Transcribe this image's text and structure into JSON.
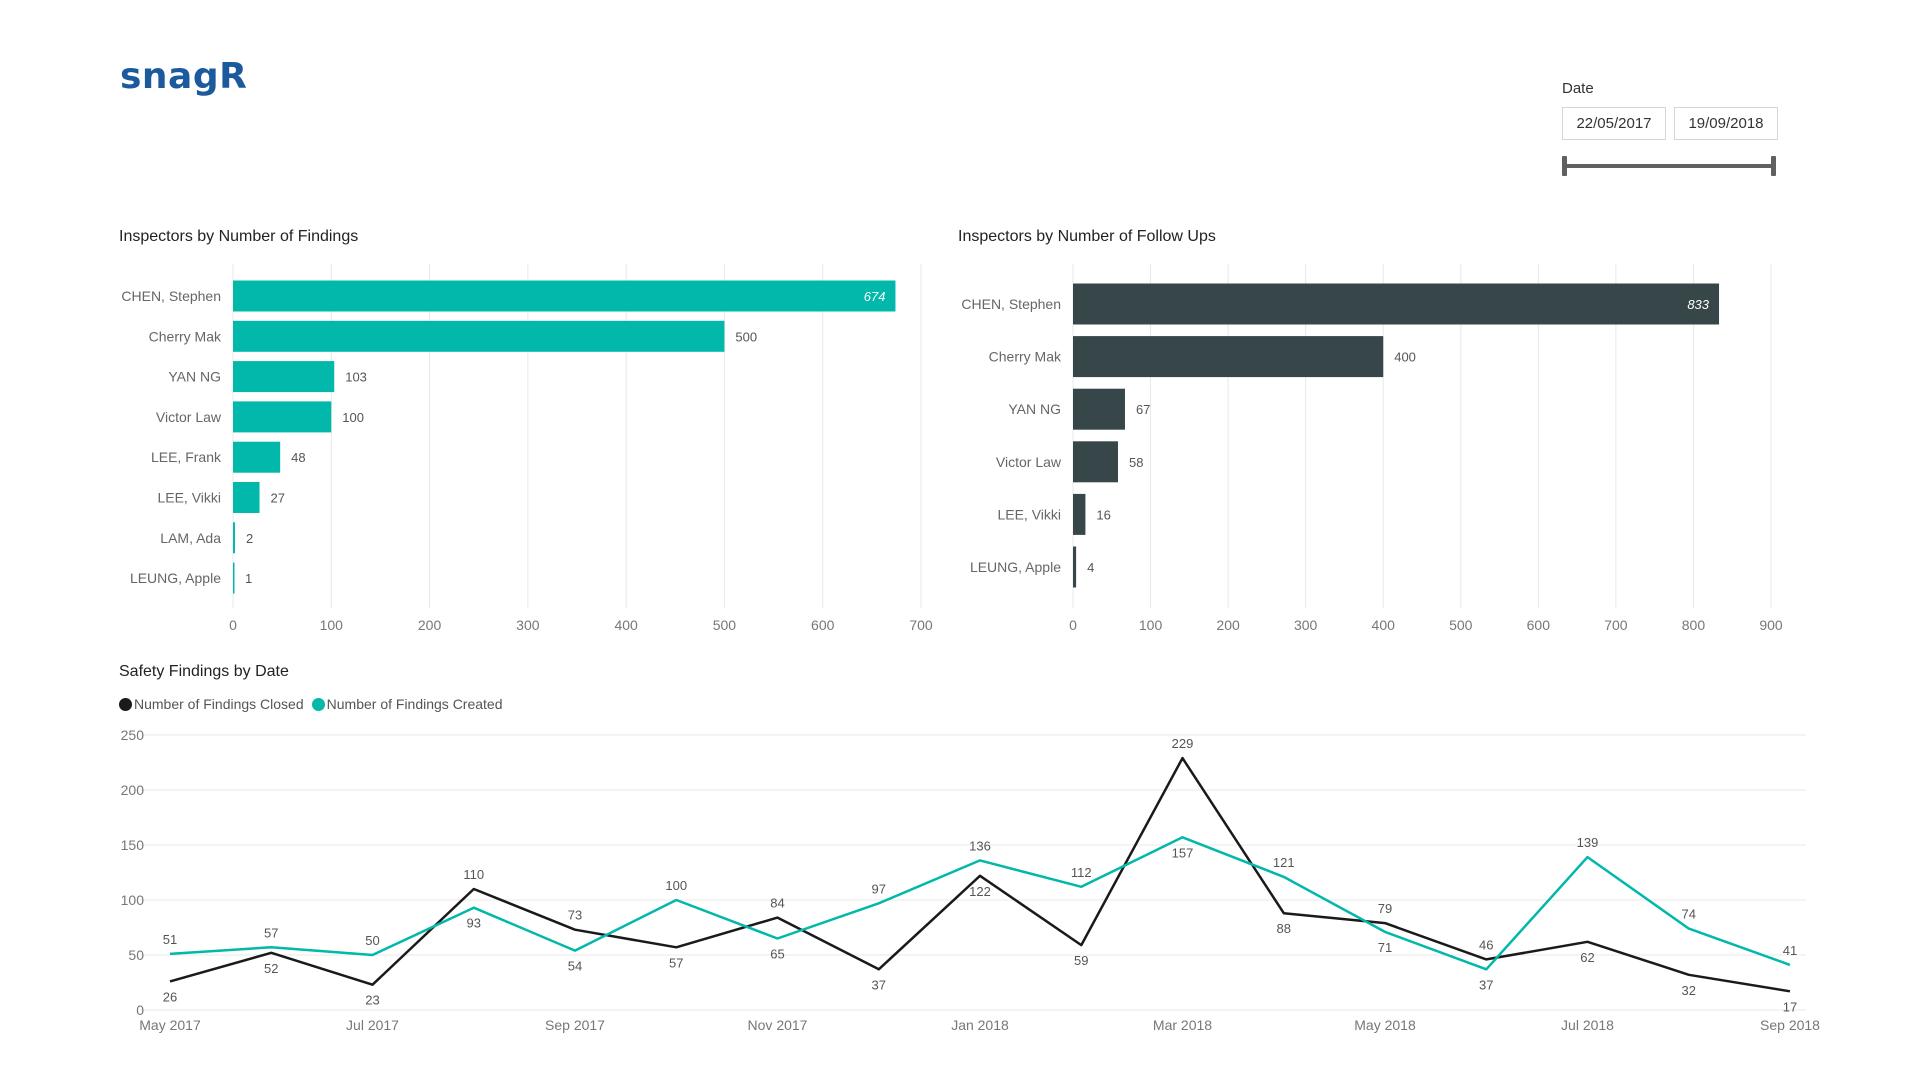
{
  "app": {
    "logo": "snagR"
  },
  "filter": {
    "label": "Date",
    "start": "22/05/2017",
    "end": "19/09/2018"
  },
  "colors": {
    "teal": "#01b8aa",
    "dark": "#374649",
    "black": "#1a1a1a",
    "grid": "#e8e8e8"
  },
  "chart_data": [
    {
      "id": "findings",
      "type": "bar",
      "orientation": "horizontal",
      "title": "Inspectors by Number of Findings",
      "categories": [
        "CHEN, Stephen",
        "Cherry Mak",
        "YAN NG",
        "Victor Law",
        "LEE, Frank",
        "LEE, Vikki",
        "LAM, Ada",
        "LEUNG, Apple"
      ],
      "values": [
        674,
        500,
        103,
        100,
        48,
        27,
        2,
        1
      ],
      "xlim": [
        0,
        700
      ],
      "ticks": [
        0,
        100,
        200,
        300,
        400,
        500,
        600,
        700
      ],
      "color": "#01b8aa",
      "grid": true
    },
    {
      "id": "followups",
      "type": "bar",
      "orientation": "horizontal",
      "title": "Inspectors by Number of Follow Ups",
      "categories": [
        "CHEN, Stephen",
        "Cherry Mak",
        "YAN NG",
        "Victor Law",
        "LEE, Vikki",
        "LEUNG, Apple"
      ],
      "values": [
        833,
        400,
        67,
        58,
        16,
        4
      ],
      "xlim": [
        0,
        900
      ],
      "ticks": [
        0,
        100,
        200,
        300,
        400,
        500,
        600,
        700,
        800,
        900
      ],
      "color": "#374649",
      "grid": true
    },
    {
      "id": "timeline",
      "type": "line",
      "title": "Safety Findings by Date",
      "x": [
        "May 2017",
        "Jun 2017",
        "Jul 2017",
        "Aug 2017",
        "Sep 2017",
        "Oct 2017",
        "Nov 2017",
        "Dec 2017",
        "Jan 2018",
        "Feb 2018",
        "Mar 2018",
        "Apr 2018",
        "May 2018",
        "Jun 2018",
        "Jul 2018",
        "Aug 2018",
        "Sep 2018"
      ],
      "xtick_labels": [
        "May 2017",
        "Jul 2017",
        "Sep 2017",
        "Nov 2017",
        "Jan 2018",
        "Mar 2018",
        "May 2018",
        "Jul 2018",
        "Sep 2018"
      ],
      "ylim": [
        0,
        250
      ],
      "yticks": [
        0,
        50,
        100,
        150,
        200,
        250
      ],
      "legend": "top-left",
      "series": [
        {
          "name": "Number of Findings Closed",
          "color": "#1a1a1a",
          "values": [
            26,
            52,
            23,
            110,
            73,
            57,
            84,
            37,
            122,
            59,
            229,
            88,
            79,
            46,
            62,
            32,
            17
          ]
        },
        {
          "name": "Number of Findings Created",
          "color": "#01b8aa",
          "values": [
            51,
            57,
            50,
            93,
            54,
            100,
            65,
            97,
            136,
            112,
            157,
            121,
            71,
            37,
            139,
            74,
            41
          ]
        }
      ]
    }
  ]
}
